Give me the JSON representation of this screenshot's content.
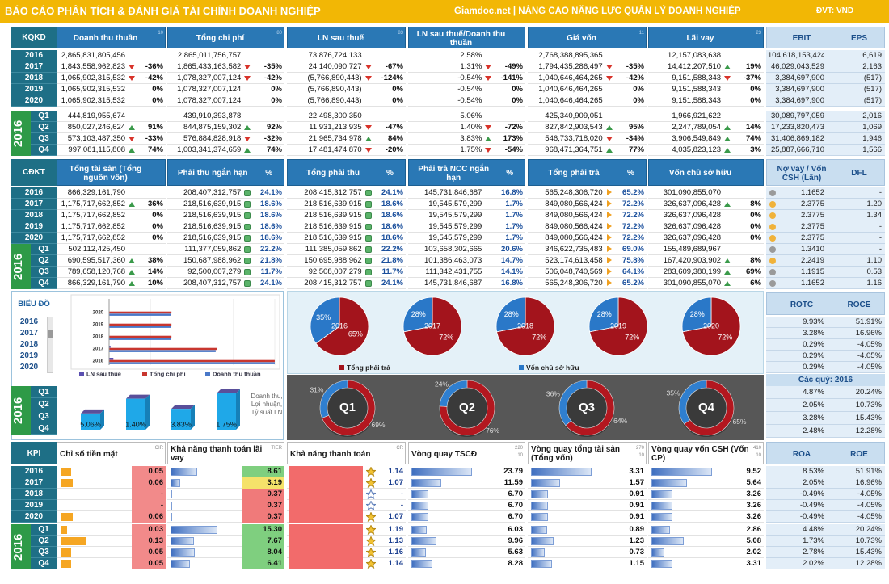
{
  "header": {
    "title": "BÁO CÁO PHÂN TÍCH & ĐÁNH GIÁ TÀI CHÍNH DOANH NGHIỆP",
    "site": "Giamdoc.net | NÂNG CAO NĂNG LỰC QUẢN LÝ DOANH NGHIỆP",
    "unit": "ĐVT:  VND"
  },
  "years": [
    "2016",
    "2017",
    "2018",
    "2019",
    "2020"
  ],
  "quarters": [
    "Q1",
    "Q2",
    "Q3",
    "Q4"
  ],
  "quarter_year": "2016",
  "kqkd": {
    "label": "KQKD",
    "panels": [
      {
        "title": "Doanh thu thuần",
        "notes": [
          "10"
        ],
        "years": [
          [
            "2,865,831,805,456"
          ],
          [
            "1,843,558,962,823",
            "-36%"
          ],
          [
            "1,065,902,315,532",
            "-42%"
          ],
          [
            "1,065,902,315,532",
            "0%"
          ],
          [
            "1,065,902,315,532",
            "0%"
          ]
        ],
        "quarters": [
          [
            "444,819,955,674"
          ],
          [
            "850,027,246,624",
            "91%"
          ],
          [
            "573,103,487,350",
            "-33%"
          ],
          [
            "997,081,115,808",
            "74%"
          ]
        ]
      },
      {
        "title": "Tổng chi phí",
        "notes": [
          "80"
        ],
        "years": [
          [
            "2,865,011,756,757"
          ],
          [
            "1,865,433,163,582",
            "-35%"
          ],
          [
            "1,078,327,007,124",
            "-42%"
          ],
          [
            "1,078,327,007,124",
            "0%"
          ],
          [
            "1,078,327,007,124",
            "0%"
          ]
        ],
        "quarters": [
          [
            "439,910,393,878"
          ],
          [
            "844,875,159,302",
            "92%"
          ],
          [
            "576,884,828,918",
            "-32%"
          ],
          [
            "1,003,341,374,659",
            "74%"
          ]
        ]
      },
      {
        "title": "LN sau thuế",
        "notes": [
          "83"
        ],
        "years": [
          [
            "73,876,724,133"
          ],
          [
            "24,140,090,727",
            "-67%"
          ],
          [
            "(5,766,890,443)",
            "-124%"
          ],
          [
            "(5,766,890,443)",
            "0%"
          ],
          [
            "(5,766,890,443)",
            "0%"
          ]
        ],
        "quarters": [
          [
            "22,498,300,350"
          ],
          [
            "11,931,213,935",
            "-47%"
          ],
          [
            "21,965,734,978",
            "84%"
          ],
          [
            "17,481,474,870",
            "-20%"
          ]
        ]
      },
      {
        "title": "LN sau thuế/Doanh thu thuần",
        "years": [
          [
            "2.58%"
          ],
          [
            "1.31%",
            "-49%"
          ],
          [
            "-0.54%",
            "-141%"
          ],
          [
            "-0.54%",
            "0%"
          ],
          [
            "-0.54%",
            "0%"
          ]
        ],
        "quarters": [
          [
            "5.06%"
          ],
          [
            "1.40%",
            "-72%"
          ],
          [
            "3.83%",
            "173%"
          ],
          [
            "1.75%",
            "-54%"
          ]
        ]
      },
      {
        "title": "Giá vốn",
        "notes": [
          "11"
        ],
        "years": [
          [
            "2,768,388,895,365"
          ],
          [
            "1,794,435,286,497",
            "-35%"
          ],
          [
            "1,040,646,464,265",
            "-42%"
          ],
          [
            "1,040,646,464,265",
            "0%"
          ],
          [
            "1,040,646,464,265",
            "0%"
          ]
        ],
        "quarters": [
          [
            "425,340,909,051"
          ],
          [
            "827,842,903,543",
            "95%"
          ],
          [
            "546,733,718,020",
            "-34%"
          ],
          [
            "968,471,364,751",
            "77%"
          ]
        ]
      },
      {
        "title": "Lãi vay",
        "notes": [
          "23"
        ],
        "years": [
          [
            "12,157,083,638"
          ],
          [
            "14,412,207,510",
            "19%"
          ],
          [
            "9,151,588,343",
            "-37%"
          ],
          [
            "9,151,588,343",
            "0%"
          ],
          [
            "9,151,588,343",
            "0%"
          ]
        ],
        "quarters": [
          [
            "1,966,921,622"
          ],
          [
            "2,247,789,054",
            "14%"
          ],
          [
            "3,906,549,849",
            "74%"
          ],
          [
            "4,035,823,123",
            "3%"
          ]
        ]
      }
    ],
    "side": {
      "headers": [
        "EBIT",
        "EPS"
      ],
      "years": [
        [
          "104,618,153,424",
          "6,619"
        ],
        [
          "46,029,043,529",
          "2,163"
        ],
        [
          "3,384,697,900",
          "(517)"
        ],
        [
          "3,384,697,900",
          "(517)"
        ],
        [
          "3,384,697,900",
          "(517)"
        ]
      ],
      "quarters": [
        [
          "30,089,797,059",
          "2,016"
        ],
        [
          "17,233,820,473",
          "1,069"
        ],
        [
          "31,406,869,182",
          "1,946"
        ],
        [
          "25,887,666,710",
          "1,566"
        ]
      ]
    }
  },
  "cdkt": {
    "label": "CĐKT",
    "panels": [
      {
        "title": "Tổng tài sản (Tổng nguồn vốn)",
        "years": [
          [
            "866,329,161,790"
          ],
          [
            "1,175,717,662,852",
            "36%"
          ],
          [
            "1,175,717,662,852",
            "0%"
          ],
          [
            "1,175,717,662,852",
            "0%"
          ],
          [
            "1,175,717,662,852",
            "0%"
          ]
        ],
        "quarters": [
          [
            "502,112,425,450"
          ],
          [
            "690,595,517,360",
            "38%"
          ],
          [
            "789,658,120,768",
            "14%"
          ],
          [
            "866,329,161,790",
            "10%"
          ]
        ]
      },
      {
        "title": "Phải thu ngắn hạn",
        "pct_title": "%",
        "years": [
          [
            "208,407,312,757",
            "24.1%"
          ],
          [
            "218,516,639,915",
            "18.6%"
          ],
          [
            "218,516,639,915",
            "18.6%"
          ],
          [
            "218,516,639,915",
            "18.6%"
          ],
          [
            "218,516,639,915",
            "18.6%"
          ]
        ],
        "quarters": [
          [
            "111,377,059,862",
            "22.2%"
          ],
          [
            "150,687,988,962",
            "21.8%"
          ],
          [
            "92,500,007,279",
            "11.7%"
          ],
          [
            "208,407,312,757",
            "24.1%"
          ]
        ]
      },
      {
        "title": "Tổng phải thu",
        "pct_title": "%",
        "years": [
          [
            "208,415,312,757",
            "24.1%"
          ],
          [
            "218,516,639,915",
            "18.6%"
          ],
          [
            "218,516,639,915",
            "18.6%"
          ],
          [
            "218,516,639,915",
            "18.6%"
          ],
          [
            "218,516,639,915",
            "18.6%"
          ]
        ],
        "quarters": [
          [
            "111,385,059,862",
            "22.2%"
          ],
          [
            "150,695,988,962",
            "21.8%"
          ],
          [
            "92,508,007,279",
            "11.7%"
          ],
          [
            "208,415,312,757",
            "24.1%"
          ]
        ]
      },
      {
        "title": "Phải trả NCC ngắn hạn",
        "pct_title": "%",
        "years": [
          [
            "145,731,846,687",
            "16.8%"
          ],
          [
            "19,545,579,299",
            "1.7%"
          ],
          [
            "19,545,579,299",
            "1.7%"
          ],
          [
            "19,545,579,299",
            "1.7%"
          ],
          [
            "19,545,579,299",
            "1.7%"
          ]
        ],
        "quarters": [
          [
            "103,658,302,665",
            "20.6%"
          ],
          [
            "101,386,463,073",
            "14.7%"
          ],
          [
            "111,342,431,755",
            "14.1%"
          ],
          [
            "145,731,846,687",
            "16.8%"
          ]
        ]
      },
      {
        "title": "Tổng phải trả",
        "pct_title": "%",
        "years": [
          [
            "565,248,306,720",
            "65.2%"
          ],
          [
            "849,080,566,424",
            "72.2%"
          ],
          [
            "849,080,566,424",
            "72.2%"
          ],
          [
            "849,080,566,424",
            "72.2%"
          ],
          [
            "849,080,566,424",
            "72.2%"
          ]
        ],
        "quarters": [
          [
            "346,622,735,483",
            "69.0%"
          ],
          [
            "523,174,613,458",
            "75.8%"
          ],
          [
            "506,048,740,569",
            "64.1%"
          ],
          [
            "565,248,306,720",
            "65.2%"
          ]
        ]
      },
      {
        "title": "Vốn chủ sở hữu",
        "years": [
          [
            "301,090,855,070"
          ],
          [
            "326,637,096,428",
            "8%"
          ],
          [
            "326,637,096,428",
            "0%"
          ],
          [
            "326,637,096,428",
            "0%"
          ],
          [
            "326,637,096,428",
            "0%"
          ]
        ],
        "quarters": [
          [
            "155,489,689,967"
          ],
          [
            "167,420,903,902",
            "8%"
          ],
          [
            "283,609,380,199",
            "69%"
          ],
          [
            "301,090,855,070",
            "6%"
          ]
        ]
      }
    ],
    "side": {
      "headers": [
        "Nợ vay / Vốn CSH (Lần)",
        "DFL"
      ],
      "years": [
        [
          "1.1652",
          "-"
        ],
        [
          "2.3775",
          "1.20"
        ],
        [
          "2.3775",
          "1.34"
        ],
        [
          "2.3775",
          "-"
        ],
        [
          "2.3775",
          "-"
        ]
      ],
      "quarters": [
        [
          "1.3410",
          "-"
        ],
        [
          "2.2419",
          "1.10"
        ],
        [
          "1.1915",
          "0.53"
        ],
        [
          "1.1652",
          "1.16"
        ]
      ]
    }
  },
  "charts_label": "BIỂU ĐỒ",
  "chart_data": [
    {
      "type": "hbar",
      "categories": [
        "2016",
        "2017",
        "2018",
        "2019",
        "2020"
      ],
      "series": [
        {
          "name": "LN sau thuế",
          "color": "#5a4fb0",
          "values": [
            73876724133,
            24140090727,
            -5766890443,
            -5766890443,
            -5766890443
          ]
        },
        {
          "name": "Tổng chi phí",
          "color": "#c8362f",
          "values": [
            2865011756757,
            1865433163582,
            1078327007124,
            1078327007124,
            1078327007124
          ]
        },
        {
          "name": "Doanh thu thuần",
          "color": "#4a78c8",
          "values": [
            2865831805456,
            1843558962823,
            1065902315532,
            1065902315532,
            1065902315532
          ]
        }
      ]
    },
    {
      "type": "column3d",
      "series": [
        {
          "name": "Doanh thu, Lợi nhuận, Tỷ suất LN",
          "color": "#1fa8e8",
          "values": [
            444819955674,
            850027246624,
            573103487350,
            997081115808
          ],
          "data_labels": [
            "5.06%",
            "1.40%",
            "3.83%",
            "1.75%"
          ]
        }
      ]
    },
    {
      "type": "pie",
      "categories": [
        "2016",
        "2017",
        "2018",
        "2019",
        "2020"
      ],
      "series": [
        {
          "name": "Tổng phải trả",
          "color": "#a3141c",
          "values": [
            65,
            72,
            72,
            72,
            72
          ],
          "value_labels": [
            "65%",
            "72%",
            "72%",
            "72%",
            "72%"
          ]
        },
        {
          "name": "Vốn chủ sở hữu",
          "color": "#2a78c8",
          "values": [
            35,
            28,
            28,
            28,
            28
          ],
          "value_labels": [
            "35%",
            "28%",
            "28%",
            "28%",
            "28%"
          ]
        }
      ]
    },
    {
      "type": "donut",
      "categories": [
        "Q1",
        "Q2",
        "Q3",
        "Q4"
      ],
      "series": [
        {
          "name": "Tổng phải trả",
          "color": "#b3171f",
          "values": [
            69,
            76,
            64,
            65
          ],
          "value_labels": [
            "69%",
            "76%",
            "64%",
            "65%"
          ]
        },
        {
          "name": "Vốn chủ sở hữu",
          "color": "#2f7fd0",
          "values": [
            31,
            24,
            36,
            35
          ],
          "value_labels": [
            "31%",
            "24%",
            "36%",
            "35%"
          ]
        }
      ]
    }
  ],
  "ratios": {
    "headers": [
      "ROTC",
      "ROCE"
    ],
    "years": [
      [
        "9.93%",
        "51.91%"
      ],
      [
        "3.28%",
        "16.96%"
      ],
      [
        "0.29%",
        "-4.05%"
      ],
      [
        "0.29%",
        "-4.05%"
      ],
      [
        "0.29%",
        "-4.05%"
      ]
    ],
    "quarter_title": "Các quý: 2016",
    "quarters": [
      [
        "4.87%",
        "20.24%"
      ],
      [
        "2.05%",
        "10.73%"
      ],
      [
        "3.28%",
        "15.43%"
      ],
      [
        "2.48%",
        "12.28%"
      ]
    ]
  },
  "kpi": {
    "label": "KPI",
    "panels": [
      {
        "title": "Chỉ số tiền mặt",
        "notes": [
          "CIR"
        ],
        "years": [
          "0.05",
          "0.06",
          "-",
          "-",
          "0.06"
        ],
        "quarters": [
          "0.03",
          "0.13",
          "0.05",
          "0.05"
        ]
      },
      {
        "title": "Khả năng thanh toán lãi vay",
        "notes": [
          "TIER"
        ],
        "years": [
          "8.61",
          "3.19",
          "0.37",
          "0.37",
          "0.37"
        ],
        "quarters": [
          "15.30",
          "7.67",
          "8.04",
          "6.41"
        ]
      },
      {
        "title": "Khả năng thanh toán",
        "notes": [
          "CR"
        ],
        "years": [
          "1.14",
          "1.07",
          "-",
          "-",
          "1.07"
        ],
        "quarters": [
          "1.19",
          "1.13",
          "1.16",
          "1.14"
        ]
      },
      {
        "title": "Vòng quay TSCĐ",
        "notes": [
          "220",
          "10"
        ],
        "years": [
          "23.79",
          "11.59",
          "6.70",
          "6.70",
          "6.70"
        ],
        "quarters": [
          "6.03",
          "9.96",
          "5.63",
          "8.28"
        ]
      },
      {
        "title": "Vòng quay tổng tài sản (Tổng vốn)",
        "notes": [
          "270",
          "10"
        ],
        "years": [
          "3.31",
          "1.57",
          "0.91",
          "0.91",
          "0.91"
        ],
        "quarters": [
          "0.89",
          "1.23",
          "0.73",
          "1.15"
        ]
      },
      {
        "title": "Vòng quay vốn CSH (Vốn CP)",
        "notes": [
          "410",
          "10"
        ],
        "years": [
          "9.52",
          "5.64",
          "3.26",
          "3.26",
          "3.26"
        ],
        "quarters": [
          "2.86",
          "5.08",
          "2.02",
          "3.31"
        ]
      }
    ],
    "side": {
      "headers": [
        "ROA",
        "ROE"
      ],
      "years": [
        [
          "8.53%",
          "51.91%"
        ],
        [
          "2.05%",
          "16.96%"
        ],
        [
          "-0.49%",
          "-4.05%"
        ],
        [
          "-0.49%",
          "-4.05%"
        ],
        [
          "-0.49%",
          "-4.05%"
        ]
      ],
      "quarters": [
        [
          "4.48%",
          "20.24%"
        ],
        [
          "1.73%",
          "10.73%"
        ],
        [
          "2.78%",
          "15.43%"
        ],
        [
          "2.02%",
          "12.28%"
        ]
      ]
    }
  }
}
